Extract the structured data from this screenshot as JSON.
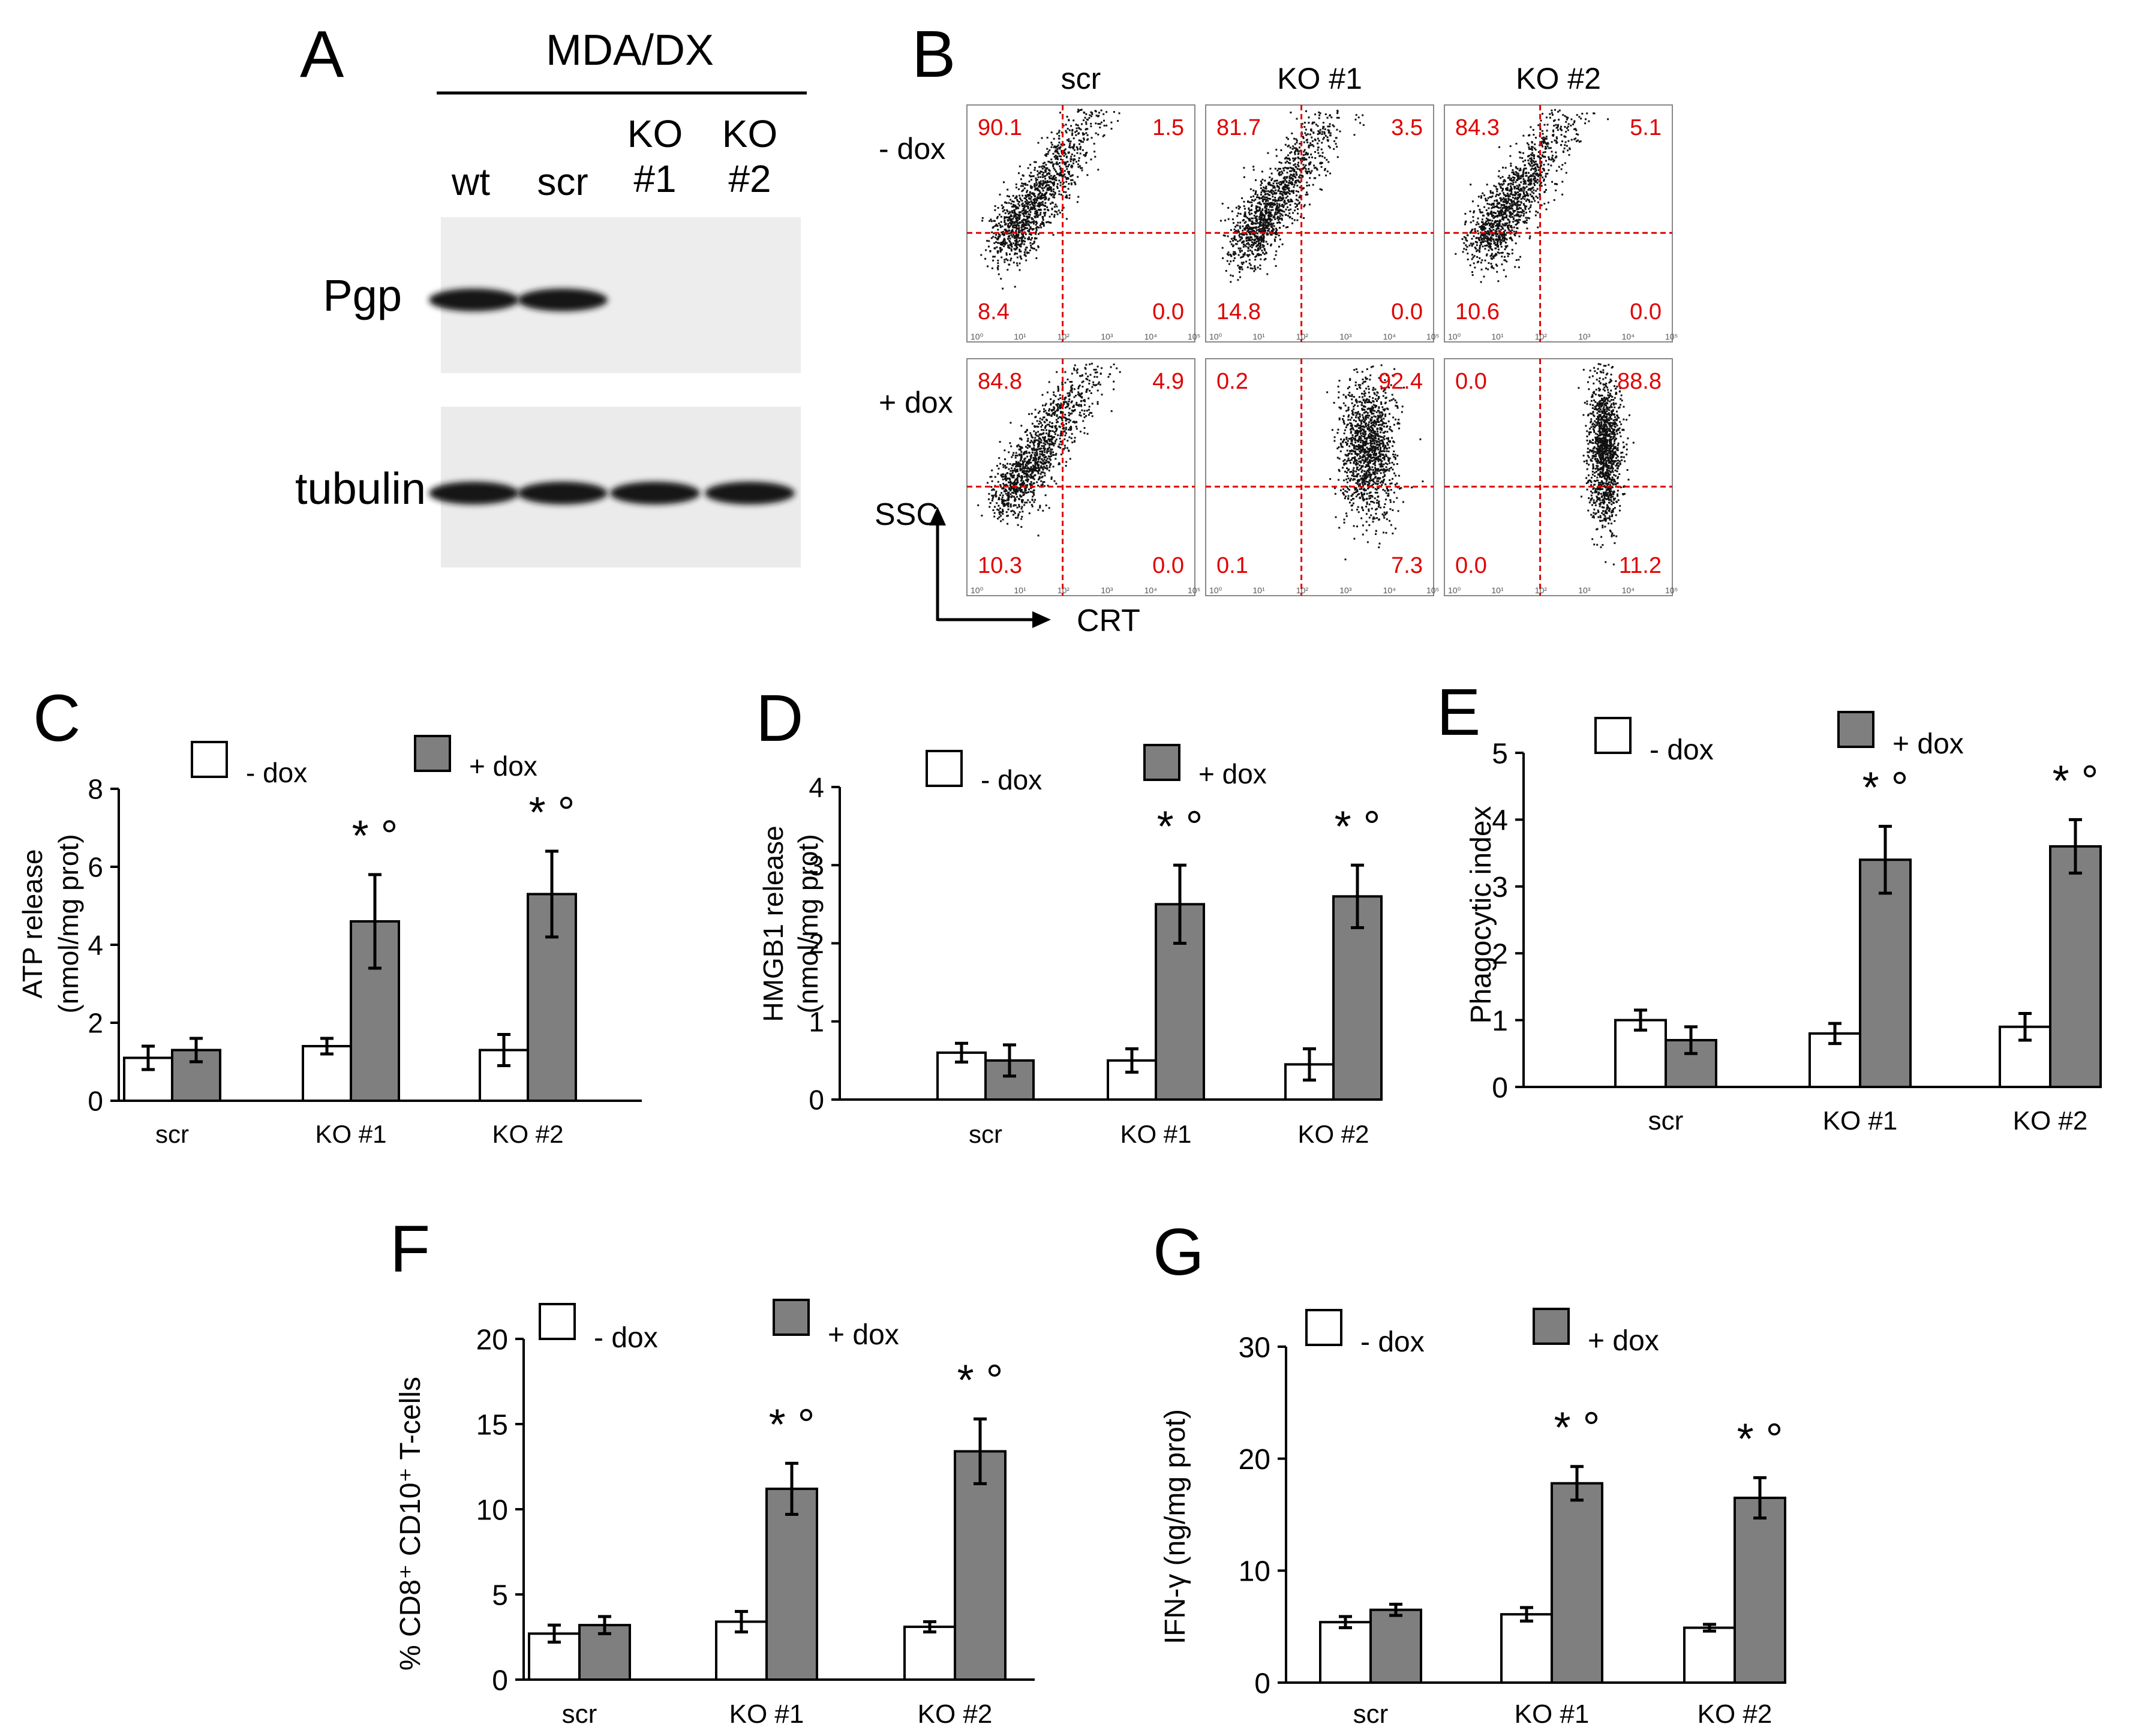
{
  "panel_letters": {
    "A": "A",
    "B": "B",
    "C": "C",
    "D": "D",
    "E": "E",
    "F": "F",
    "G": "G"
  },
  "panel_a": {
    "cell_line": "MDA/DX",
    "lanes": [
      {
        "top": "",
        "bottom": "wt"
      },
      {
        "top": "",
        "bottom": "scr"
      },
      {
        "top": "KO",
        "bottom": "#1"
      },
      {
        "top": "KO",
        "bottom": "#2"
      }
    ],
    "blots": [
      "Pgp",
      "tubulin"
    ],
    "band_present": {
      "Pgp": [
        true,
        true,
        false,
        false
      ],
      "tubulin": [
        true,
        true,
        true,
        true
      ]
    }
  },
  "panel_b": {
    "columns": [
      "scr",
      "KO #1",
      "KO #2"
    ],
    "rows": [
      "- dox",
      "+ dox"
    ],
    "y_axis": "SSC",
    "x_axis": "CRT",
    "tick_labels": [
      "10⁰",
      "10¹",
      "10²",
      "10³",
      "10⁴",
      "10⁵"
    ],
    "quadrants": [
      [
        {
          "ul": "90.1",
          "ur": "1.5",
          "ll": "8.4",
          "lr": "0.0"
        },
        {
          "ul": "81.7",
          "ur": "3.5",
          "ll": "14.8",
          "lr": "0.0"
        },
        {
          "ul": "84.3",
          "ur": "5.1",
          "ll": "10.6",
          "lr": "0.0"
        }
      ],
      [
        {
          "ul": "84.8",
          "ur": "4.9",
          "ll": "10.3",
          "lr": "0.0"
        },
        {
          "ul": "0.2",
          "ur": "92.4",
          "ll": "0.1",
          "lr": "7.3"
        },
        {
          "ul": "0.0",
          "ur": "88.8",
          "ll": "0.0",
          "lr": "11.2"
        }
      ]
    ],
    "quadrant_color": "#e00000"
  },
  "colors": {
    "minus_dox": "#ffffff",
    "plus_dox": "#7f7f7f",
    "edge": "#000000"
  },
  "chart_data": [
    {
      "panel": "C",
      "type": "bar",
      "categories": [
        "scr",
        "KO #1",
        "KO #2"
      ],
      "ylabel": [
        "ATP release",
        "(nmol/mg prot)"
      ],
      "ylim": [
        0,
        8
      ],
      "yticks": [
        0,
        2,
        4,
        6,
        8
      ],
      "series": [
        {
          "name": "- dox",
          "values": [
            1.1,
            1.4,
            1.3
          ],
          "errors": [
            0.3,
            0.2,
            0.4
          ]
        },
        {
          "name": "+ dox",
          "values": [
            1.3,
            4.6,
            5.3
          ],
          "errors": [
            0.3,
            1.2,
            1.1
          ]
        }
      ],
      "marks": [
        "",
        "* °",
        "* °"
      ]
    },
    {
      "panel": "D",
      "type": "bar",
      "categories": [
        "scr",
        "KO #1",
        "KO #2"
      ],
      "ylabel": [
        "HMGB1 release",
        "(nmol/mg prot)"
      ],
      "ylim": [
        0,
        4
      ],
      "yticks": [
        0,
        1,
        2,
        3,
        4
      ],
      "series": [
        {
          "name": "- dox",
          "values": [
            0.6,
            0.5,
            0.45
          ],
          "errors": [
            0.12,
            0.15,
            0.2
          ]
        },
        {
          "name": "+ dox",
          "values": [
            0.5,
            2.5,
            2.6
          ],
          "errors": [
            0.2,
            0.5,
            0.4
          ]
        }
      ],
      "marks": [
        "",
        "* °",
        "* °"
      ]
    },
    {
      "panel": "E",
      "type": "bar",
      "categories": [
        "scr",
        "KO #1",
        "KO #2"
      ],
      "ylabel": [
        "Phagocytic index"
      ],
      "ylim": [
        0,
        5
      ],
      "yticks": [
        0,
        1,
        2,
        3,
        4,
        5
      ],
      "series": [
        {
          "name": "- dox",
          "values": [
            1.0,
            0.8,
            0.9
          ],
          "errors": [
            0.15,
            0.15,
            0.2
          ]
        },
        {
          "name": "+ dox",
          "values": [
            0.7,
            3.4,
            3.6
          ],
          "errors": [
            0.2,
            0.5,
            0.4
          ]
        }
      ],
      "marks": [
        "",
        "* °",
        "* °"
      ]
    },
    {
      "panel": "F",
      "type": "bar",
      "categories": [
        "scr",
        "KO #1",
        "KO #2"
      ],
      "ylabel": [
        "% CD8⁺ CD10⁺ T-cells"
      ],
      "ylim": [
        0,
        20
      ],
      "yticks": [
        0,
        5,
        10,
        15,
        20
      ],
      "series": [
        {
          "name": "- dox",
          "values": [
            2.7,
            3.4,
            3.1
          ],
          "errors": [
            0.5,
            0.6,
            0.3
          ]
        },
        {
          "name": "+ dox",
          "values": [
            3.2,
            11.2,
            13.4
          ],
          "errors": [
            0.5,
            1.5,
            1.9
          ]
        }
      ],
      "marks": [
        "",
        "* °",
        "* °"
      ]
    },
    {
      "panel": "G",
      "type": "bar",
      "categories": [
        "scr",
        "KO #1",
        "KO #2"
      ],
      "ylabel": [
        "IFN-γ (ng/mg prot)"
      ],
      "ylim": [
        0,
        30
      ],
      "yticks": [
        0,
        10,
        20,
        30
      ],
      "series": [
        {
          "name": "- dox",
          "values": [
            5.4,
            6.1,
            4.9
          ],
          "errors": [
            0.5,
            0.6,
            0.3
          ]
        },
        {
          "name": "+ dox",
          "values": [
            6.5,
            17.8,
            16.5
          ],
          "errors": [
            0.5,
            1.5,
            1.8
          ]
        }
      ],
      "marks": [
        "",
        "* °",
        "* °"
      ]
    }
  ]
}
